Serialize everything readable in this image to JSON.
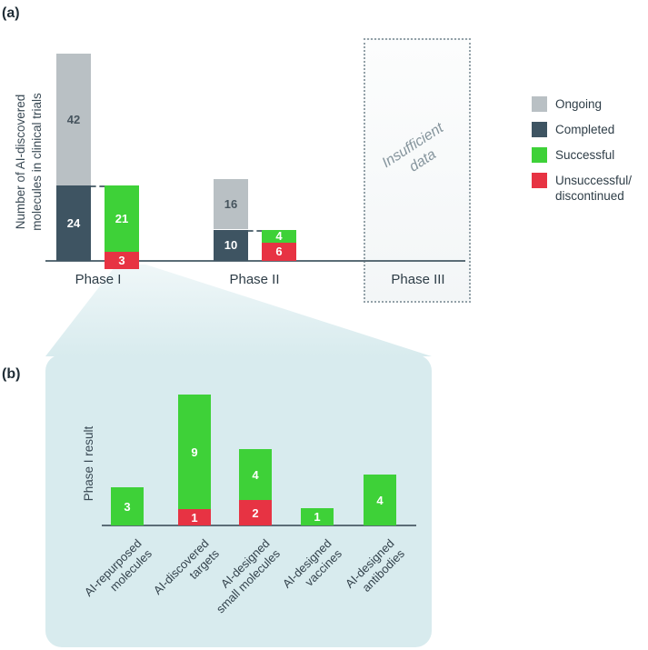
{
  "panel_a": {
    "tag": "(a)",
    "ylabel": "Number of AI-discovered\nmolecules in clinical trials",
    "insufficient_label": "Insufficient data",
    "legend": [
      {
        "label": "Ongoing",
        "color": "#b9c0c4"
      },
      {
        "label": "Completed",
        "color": "#3e5462"
      },
      {
        "label": "Successful",
        "color": "#3ed138"
      },
      {
        "label": "Unsuccessful/\ndiscontinued",
        "color": "#e73343"
      }
    ]
  },
  "panel_b": {
    "tag": "(b)",
    "ylabel": "Phase I result"
  },
  "chart_data": [
    {
      "type": "bar",
      "panel": "a",
      "title": "",
      "ylabel": "Number of AI-discovered molecules in clinical trials",
      "categories": [
        "Phase I",
        "Phase II",
        "Phase III"
      ],
      "series": [
        {
          "name": "Ongoing",
          "color": "#b9c0c4",
          "values": [
            42,
            16,
            null
          ]
        },
        {
          "name": "Completed",
          "color": "#3e5462",
          "values": [
            24,
            10,
            null
          ]
        },
        {
          "name": "Successful",
          "color": "#3ed138",
          "values": [
            21,
            4,
            null
          ]
        },
        {
          "name": "Unsuccessful/discontinued",
          "color": "#e73343",
          "values": [
            3,
            6,
            null
          ]
        }
      ],
      "annotations": [
        {
          "text": "Insufficient data",
          "category": "Phase III"
        }
      ],
      "legend_position": "right",
      "grid": false
    },
    {
      "type": "bar",
      "panel": "b",
      "title": "",
      "ylabel": "Phase I result",
      "categories": [
        "AI-repurposed\nmolecules",
        "AI-discovered\ntargets",
        "AI-designed\nsmall molecules",
        "AI-designed\nvaccines",
        "AI-designed\nantibodies"
      ],
      "series": [
        {
          "name": "Successful",
          "color": "#3ed138",
          "values": [
            3,
            9,
            4,
            1,
            4
          ]
        },
        {
          "name": "Unsuccessful/discontinued",
          "color": "#e73343",
          "values": [
            0,
            1,
            2,
            0,
            0
          ]
        }
      ],
      "grid": false
    }
  ]
}
